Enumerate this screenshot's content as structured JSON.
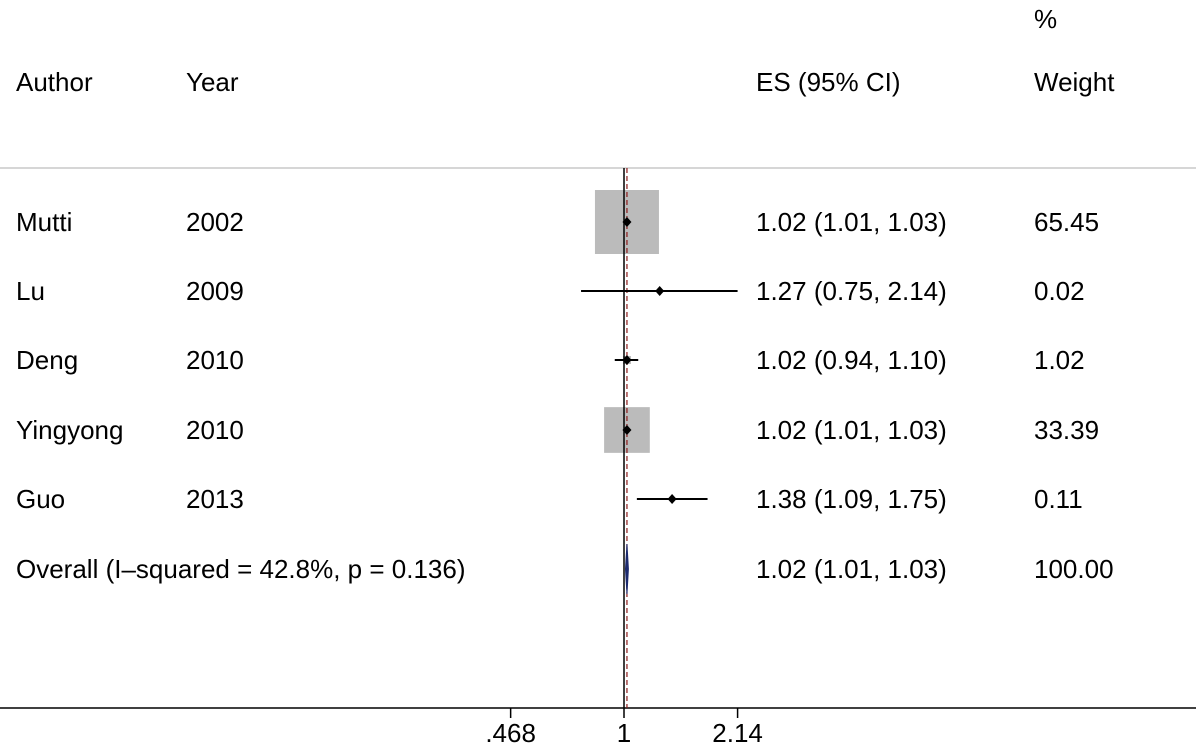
{
  "chart_data": {
    "type": "forest",
    "headers": {
      "author": "Author",
      "year": "Year",
      "es": "ES (95% CI)",
      "weight_top": "%",
      "weight": "Weight"
    },
    "studies": [
      {
        "author": "Mutti",
        "year": "2002",
        "es": 1.02,
        "lo": 1.01,
        "hi": 1.03,
        "es_text": "1.02 (1.01, 1.03)",
        "weight": 65.45,
        "weight_text": "65.45"
      },
      {
        "author": "Lu",
        "year": "2009",
        "es": 1.27,
        "lo": 0.75,
        "hi": 2.14,
        "es_text": "1.27 (0.75, 2.14)",
        "weight": 0.02,
        "weight_text": "0.02"
      },
      {
        "author": "Deng",
        "year": "2010",
        "es": 1.02,
        "lo": 0.94,
        "hi": 1.1,
        "es_text": "1.02 (0.94, 1.10)",
        "weight": 1.02,
        "weight_text": "1.02"
      },
      {
        "author": "Yingyong",
        "year": "2010",
        "es": 1.02,
        "lo": 1.01,
        "hi": 1.03,
        "es_text": "1.02 (1.01, 1.03)",
        "weight": 33.39,
        "weight_text": "33.39"
      },
      {
        "author": "Guo",
        "year": "2013",
        "es": 1.38,
        "lo": 1.09,
        "hi": 1.75,
        "es_text": "1.38 (1.09, 1.75)",
        "weight": 0.11,
        "weight_text": "0.11"
      }
    ],
    "overall": {
      "label": "Overall  (I–squared = 42.8%, p = 0.136)",
      "es": 1.02,
      "lo": 1.01,
      "hi": 1.03,
      "es_text": "1.02 (1.01, 1.03)",
      "weight_text": "100.00"
    },
    "x_scale": "log",
    "x_ticks": [
      {
        "value": 0.468,
        "label": ".468"
      },
      {
        "value": 1,
        "label": "1"
      },
      {
        "value": 2.14,
        "label": "2.14"
      }
    ],
    "null_line": 1,
    "colors": {
      "weight_box": "#bbbbbb",
      "overall_diamond": "#1c2a6e",
      "overall_line": "#8b1a1a",
      "null_line": "#000000"
    }
  }
}
